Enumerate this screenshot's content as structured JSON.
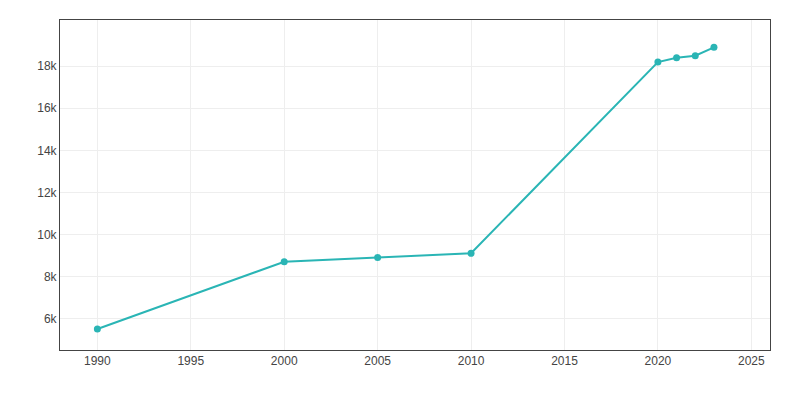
{
  "chart_data": {
    "type": "line",
    "x": [
      1990,
      2000,
      2005,
      2010,
      2020,
      2021,
      2022,
      2023
    ],
    "values": [
      5500,
      8700,
      8900,
      9100,
      18200,
      18400,
      18500,
      18900
    ],
    "color": "#2ab5b5",
    "marker": "circle",
    "xlim": [
      1988,
      2026
    ],
    "ylim": [
      4500,
      20200
    ],
    "xticks": [
      1990,
      1995,
      2000,
      2005,
      2010,
      2015,
      2020,
      2025
    ],
    "yticks": [
      {
        "value": 6000,
        "label": "6k"
      },
      {
        "value": 8000,
        "label": "8k"
      },
      {
        "value": 10000,
        "label": "10k"
      },
      {
        "value": 12000,
        "label": "12k"
      },
      {
        "value": 14000,
        "label": "14k"
      },
      {
        "value": 16000,
        "label": "16k"
      },
      {
        "value": 18000,
        "label": "18k"
      }
    ],
    "grid": true
  }
}
